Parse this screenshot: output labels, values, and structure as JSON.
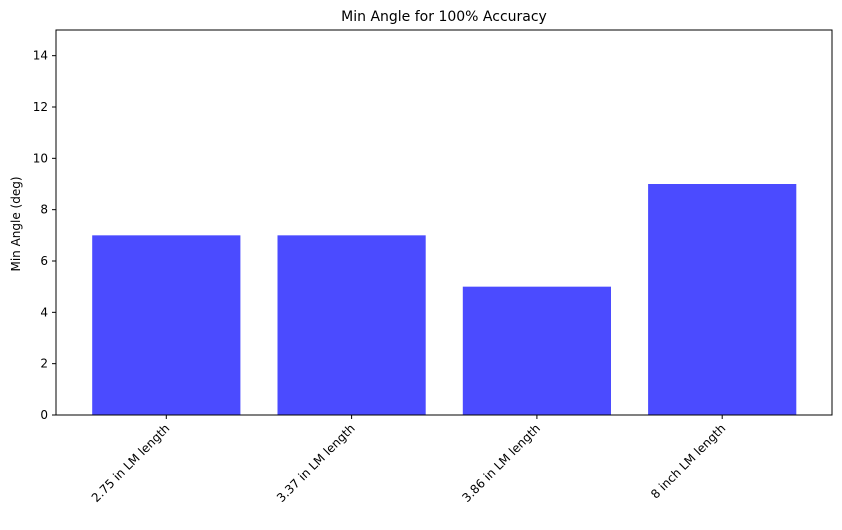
{
  "chart_data": {
    "type": "bar",
    "title": "Min Angle for 100% Accuracy",
    "xlabel": "",
    "ylabel": "Min Angle (deg)",
    "categories": [
      "2.75 in LM length",
      "3.37 in LM length",
      "3.86 in LM length",
      "8 inch LM length"
    ],
    "values": [
      7,
      7,
      5,
      9
    ],
    "ylim": [
      0,
      15
    ],
    "yticks": [
      0,
      2,
      4,
      6,
      8,
      10,
      12,
      14
    ],
    "bar_color": "#4b4bff",
    "grid": false,
    "legend": "none"
  }
}
